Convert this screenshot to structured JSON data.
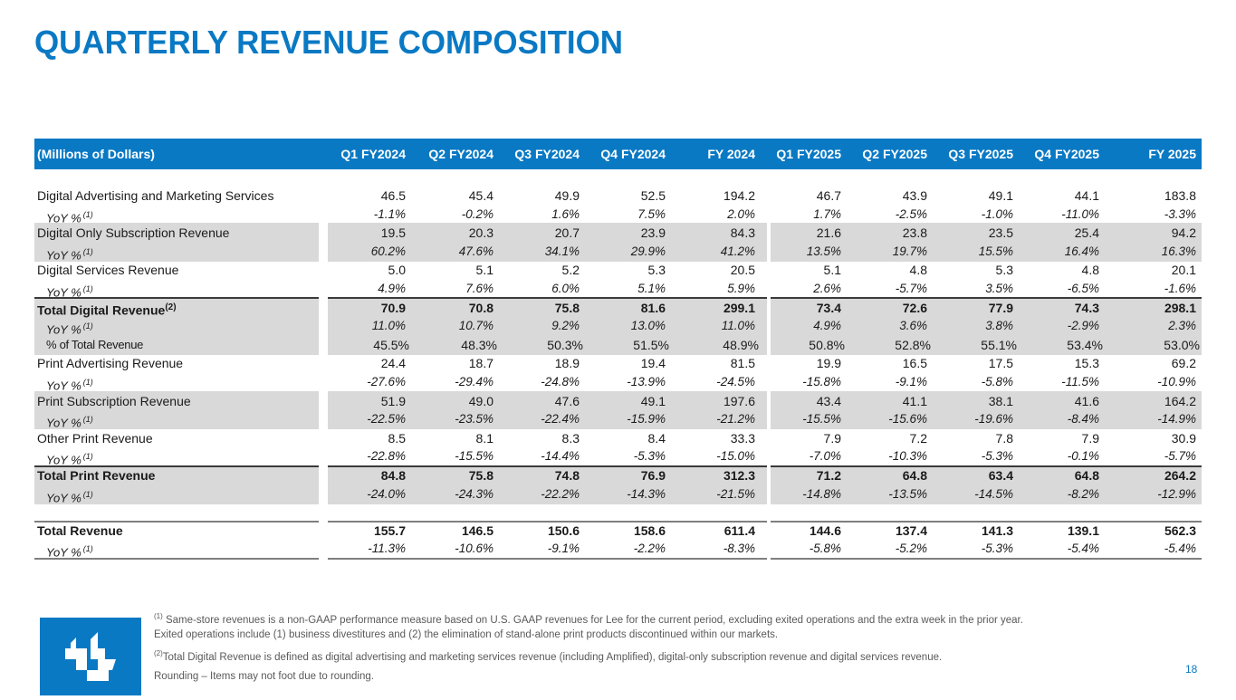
{
  "title": "QUARTERLY REVENUE COMPOSITION",
  "table": {
    "header_label": "(Millions of Dollars)",
    "columns": [
      "Q1 FY2024",
      "Q2 FY2024",
      "Q3 FY2024",
      "Q4 FY2024",
      "FY 2024",
      "Q1 FY2025",
      "Q2 FY2025",
      "Q3 FY2025",
      "Q4 FY2025",
      "FY 2025"
    ],
    "rows": [
      {
        "label": "Digital Advertising and Marketing Services",
        "kind": "main",
        "values": [
          "46.5",
          "45.4",
          "49.9",
          "52.5",
          "194.2",
          "46.7",
          "43.9",
          "49.1",
          "44.1",
          "183.8"
        ]
      },
      {
        "label": "YoY %",
        "sup": "(1)",
        "kind": "sub",
        "values": [
          "-1.1%",
          "-0.2%",
          "1.6%",
          "7.5%",
          "2.0%",
          "1.7%",
          "-2.5%",
          "-1.0%",
          "-11.0%",
          "-3.3%"
        ]
      },
      {
        "label": "Digital Only Subscription Revenue",
        "kind": "main",
        "values": [
          "19.5",
          "20.3",
          "20.7",
          "23.9",
          "84.3",
          "21.6",
          "23.8",
          "23.5",
          "25.4",
          "94.2"
        ]
      },
      {
        "label": "YoY %",
        "sup": "(1)",
        "kind": "sub",
        "values": [
          "60.2%",
          "47.6%",
          "34.1%",
          "29.9%",
          "41.2%",
          "13.5%",
          "19.7%",
          "15.5%",
          "16.4%",
          "16.3%"
        ]
      },
      {
        "label": "Digital Services Revenue",
        "kind": "main",
        "values": [
          "5.0",
          "5.1",
          "5.2",
          "5.3",
          "20.5",
          "5.1",
          "4.8",
          "5.3",
          "4.8",
          "20.1"
        ]
      },
      {
        "label": "YoY %",
        "sup": "(1)",
        "kind": "sub",
        "values": [
          "4.9%",
          "7.6%",
          "6.0%",
          "5.1%",
          "5.9%",
          "2.6%",
          "-5.7%",
          "3.5%",
          "-6.5%",
          "-1.6%"
        ]
      },
      {
        "label": "Total Digital Revenue",
        "sup": "(2)",
        "kind": "bold",
        "values": [
          "70.9",
          "70.8",
          "75.8",
          "81.6",
          "299.1",
          "73.4",
          "72.6",
          "77.9",
          "74.3",
          "298.1"
        ]
      },
      {
        "label": "YoY %",
        "sup": "(1)",
        "kind": "sub",
        "values": [
          "11.0%",
          "10.7%",
          "9.2%",
          "13.0%",
          "11.0%",
          "4.9%",
          "3.6%",
          "3.8%",
          "-2.9%",
          "2.3%"
        ]
      },
      {
        "label": "% of Total Revenue",
        "kind": "pct",
        "values": [
          "45.5%",
          "48.3%",
          "50.3%",
          "51.5%",
          "48.9%",
          "50.8%",
          "52.8%",
          "55.1%",
          "53.4%",
          "53.0%"
        ]
      },
      {
        "label": "Print Advertising Revenue",
        "kind": "main",
        "values": [
          "24.4",
          "18.7",
          "18.9",
          "19.4",
          "81.5",
          "19.9",
          "16.5",
          "17.5",
          "15.3",
          "69.2"
        ]
      },
      {
        "label": "YoY %",
        "sup": "(1)",
        "kind": "sub",
        "values": [
          "-27.6%",
          "-29.4%",
          "-24.8%",
          "-13.9%",
          "-24.5%",
          "-15.8%",
          "-9.1%",
          "-5.8%",
          "-11.5%",
          "-10.9%"
        ]
      },
      {
        "label": "Print Subscription Revenue",
        "kind": "main",
        "values": [
          "51.9",
          "49.0",
          "47.6",
          "49.1",
          "197.6",
          "43.4",
          "41.1",
          "38.1",
          "41.6",
          "164.2"
        ]
      },
      {
        "label": "YoY %",
        "sup": "(1)",
        "kind": "sub",
        "values": [
          "-22.5%",
          "-23.5%",
          "-22.4%",
          "-15.9%",
          "-21.2%",
          "-15.5%",
          "-15.6%",
          "-19.6%",
          "-8.4%",
          "-14.9%"
        ]
      },
      {
        "label": "Other Print Revenue",
        "kind": "main",
        "values": [
          "8.5",
          "8.1",
          "8.3",
          "8.4",
          "33.3",
          "7.9",
          "7.2",
          "7.8",
          "7.9",
          "30.9"
        ]
      },
      {
        "label": "YoY %",
        "sup": "(1)",
        "kind": "sub",
        "values": [
          "-22.8%",
          "-15.5%",
          "-14.4%",
          "-5.3%",
          "-15.0%",
          "-7.0%",
          "-10.3%",
          "-5.3%",
          "-0.1%",
          "-5.7%"
        ]
      },
      {
        "label": "Total Print Revenue",
        "kind": "bold",
        "values": [
          "84.8",
          "75.8",
          "74.8",
          "76.9",
          "312.3",
          "71.2",
          "64.8",
          "63.4",
          "64.8",
          "264.2"
        ]
      },
      {
        "label": "YoY %",
        "sup": "(1)",
        "kind": "sub",
        "values": [
          "-24.0%",
          "-24.3%",
          "-22.2%",
          "-14.3%",
          "-21.5%",
          "-14.8%",
          "-13.5%",
          "-14.5%",
          "-8.2%",
          "-12.9%"
        ]
      },
      {
        "label": "Total Revenue",
        "kind": "bold",
        "values": [
          "155.7",
          "146.5",
          "150.6",
          "158.6",
          "611.4",
          "144.6",
          "137.4",
          "141.3",
          "139.1",
          "562.3"
        ]
      },
      {
        "label": "YoY %",
        "sup": "(1)",
        "kind": "sub",
        "values": [
          "-11.3%",
          "-10.6%",
          "-9.1%",
          "-2.2%",
          "-8.3%",
          "-5.8%",
          "-5.2%",
          "-5.3%",
          "-5.4%",
          "-5.4%"
        ]
      }
    ]
  },
  "footnotes": {
    "note1_marker": "(1)",
    "note1_line1": "Same-store revenues is a non-GAAP performance measure based on U.S. GAAP revenues for Lee for the current period, excluding exited operations and the extra week in the prior year.",
    "note1_line2": "Exited operations include (1) business divestitures and (2) the elimination of stand-alone print products discontinued within our markets.",
    "note2_marker": "(2)",
    "note2": "Total Digital Revenue is defined as digital advertising and marketing services revenue (including Amplified), digital-only subscription revenue and digital services revenue.",
    "rounding": "Rounding – Items may not foot due to rounding."
  },
  "logo_icon": "lee-enterprises-logo",
  "page_number": "18",
  "colors": {
    "brand_blue": "#0a79c4",
    "shade_grey": "#d9d9d9"
  }
}
